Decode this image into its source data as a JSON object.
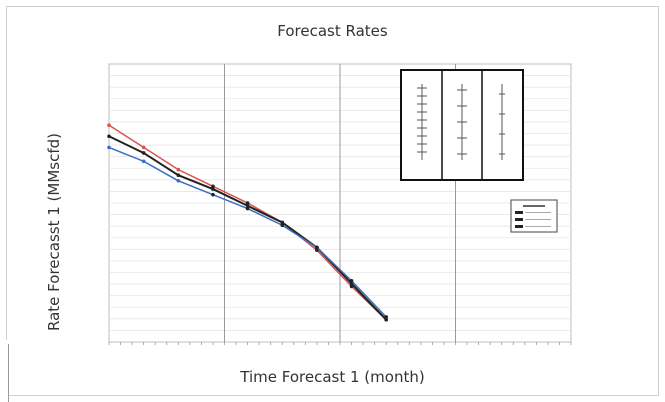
{
  "chart_data": {
    "type": "line",
    "title": "Forecast Rates",
    "xlabel": "Time Forecast 1 (month)",
    "ylabel": "Rate Forecasst 1 (MMscfd)",
    "xlim": [
      0,
      400
    ],
    "ylim": [
      0,
      100
    ],
    "grid": true,
    "legend_placement": "right",
    "series": [
      {
        "color": "#d9534f",
        "x": [
          0,
          30,
          60,
          90,
          120,
          150,
          180,
          210,
          240
        ],
        "y": [
          78,
          70,
          62,
          56,
          50,
          43,
          33,
          20,
          8
        ]
      },
      {
        "color": "#222222",
        "x": [
          0,
          30,
          60,
          90,
          120,
          150,
          180,
          210,
          240
        ],
        "y": [
          74,
          68,
          60,
          55,
          49,
          43,
          34,
          21,
          8
        ]
      },
      {
        "color": "#3a6fc4",
        "x": [
          0,
          30,
          60,
          90,
          120,
          150,
          180,
          210,
          240
        ],
        "y": [
          70,
          65,
          58,
          53,
          48,
          42,
          34,
          22,
          9
        ]
      }
    ]
  }
}
